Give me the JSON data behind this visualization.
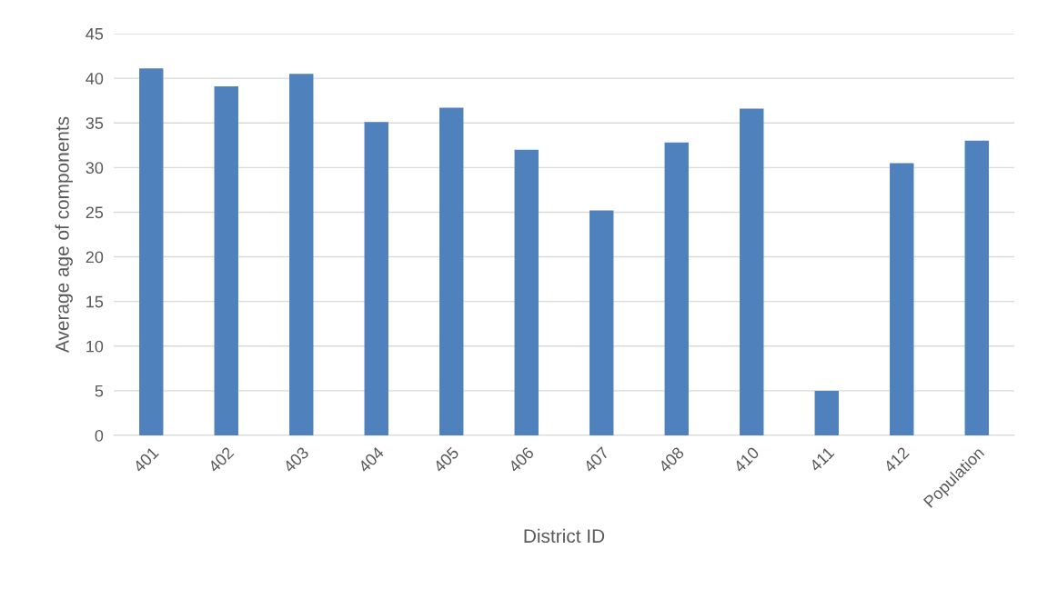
{
  "chart_data": {
    "type": "bar",
    "xlabel": "District ID",
    "ylabel": "Average age of components",
    "categories": [
      "401",
      "402",
      "403",
      "404",
      "405",
      "406",
      "407",
      "408",
      "410",
      "411",
      "412",
      "Population"
    ],
    "values": [
      41.1,
      39.1,
      40.5,
      35.1,
      36.7,
      32.0,
      25.2,
      32.8,
      36.6,
      5.0,
      30.5,
      33.0
    ],
    "color": "#4f81bd",
    "ylim": [
      0,
      45
    ],
    "yticks": [
      0,
      5,
      10,
      15,
      20,
      25,
      30,
      35,
      40,
      45
    ],
    "grid": "y",
    "legend": false
  }
}
